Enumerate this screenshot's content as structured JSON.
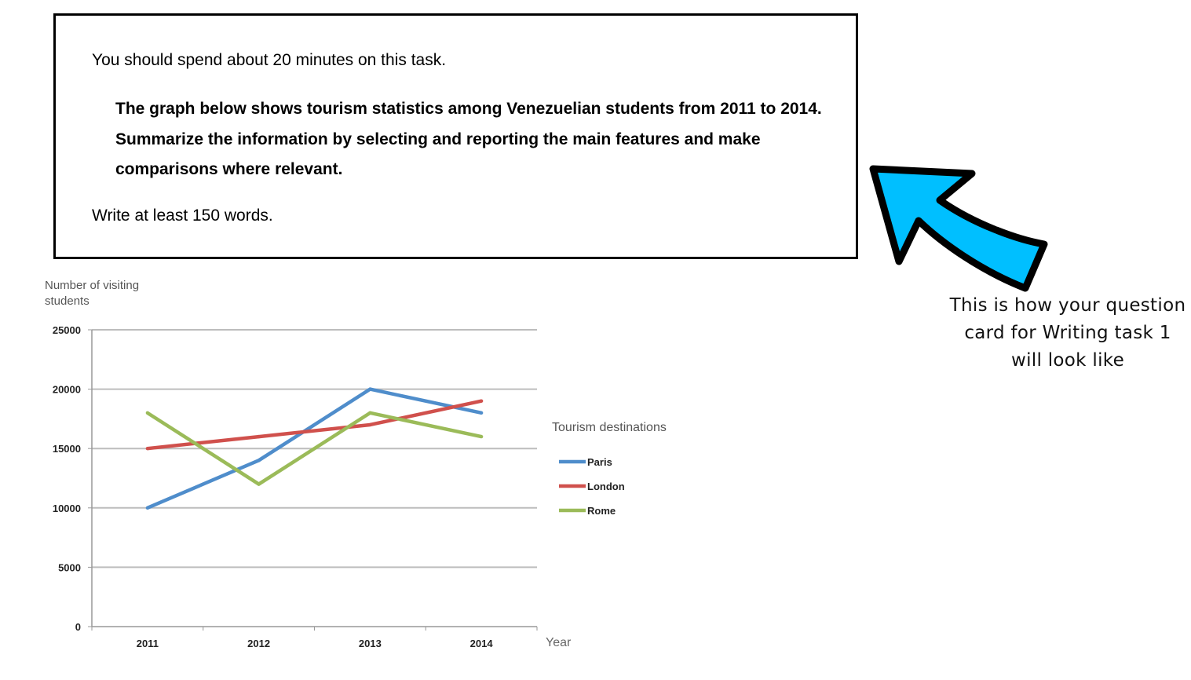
{
  "task_card": {
    "intro": "You should spend about 20 minutes on this task.",
    "prompt": "The graph below shows tourism statistics among Venezuelian students from 2011 to 2014. Summarize the information by selecting and reporting the main features and make comparisons where relevant.",
    "word_limit": "Write at least 150 words."
  },
  "annotation": {
    "caption": "This is how your question card for Writing task 1 will look like",
    "arrow_color": "#00BFFF",
    "arrow_icon": "curved-arrow-icon"
  },
  "chart_data": {
    "type": "line",
    "title": "",
    "ylabel": "Number of visiting students",
    "xlabel": "Year",
    "categories": [
      "2011",
      "2012",
      "2013",
      "2014"
    ],
    "ylim": [
      0,
      25000
    ],
    "yticks": [
      0,
      5000,
      10000,
      15000,
      20000,
      25000
    ],
    "grid": true,
    "legend_title": "Tourism destinations",
    "legend_position": "right",
    "series": [
      {
        "name": "Paris",
        "values": [
          10000,
          14000,
          20000,
          18000
        ],
        "color": "#4F8DCB"
      },
      {
        "name": "London",
        "values": [
          15000,
          16000,
          17000,
          19000
        ],
        "color": "#D0504C"
      },
      {
        "name": "Rome",
        "values": [
          18000,
          12000,
          18000,
          16000
        ],
        "color": "#9BBB59"
      }
    ]
  }
}
